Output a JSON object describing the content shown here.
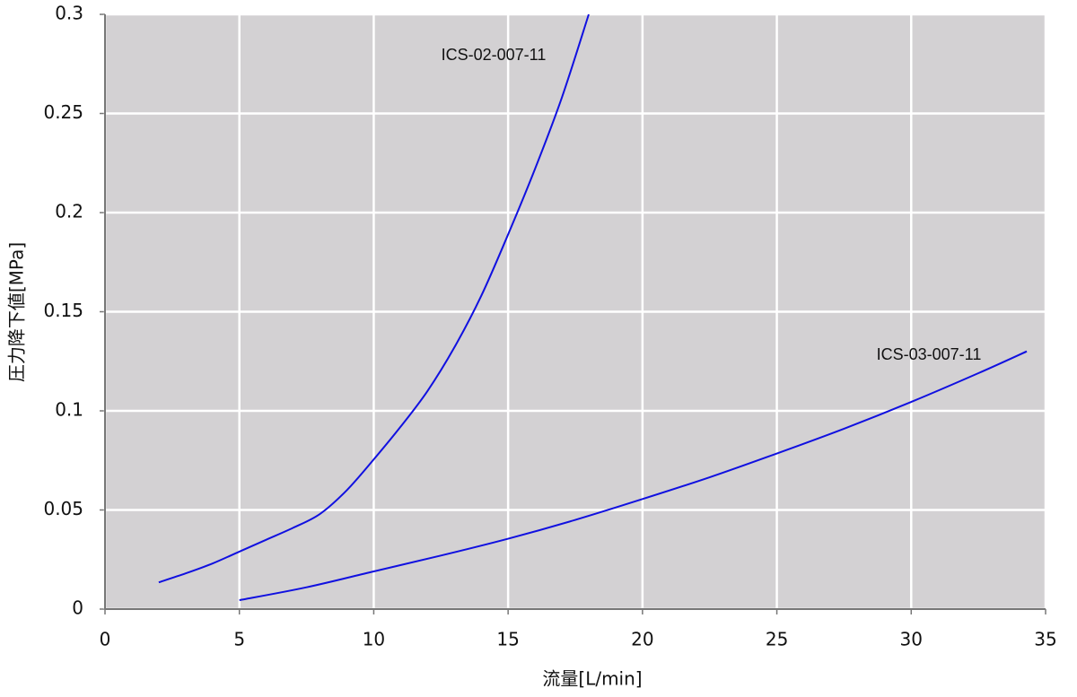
{
  "chart_data": {
    "type": "line",
    "x_label": "流量[L/min]",
    "y_label": "圧力降下値[MPa]",
    "xlim": [
      0,
      35
    ],
    "xticks": [
      0,
      5,
      10,
      15,
      20,
      25,
      30,
      35
    ],
    "ylim": [
      0,
      0.3
    ],
    "yticks": [
      0,
      0.05,
      0.1,
      0.15,
      0.2,
      0.25,
      0.3
    ],
    "grid": true,
    "series": [
      {
        "name": "ICS-02-007-11",
        "color": "#1010e0",
        "x": [
          2,
          3,
          4,
          5,
          6,
          7,
          8,
          9,
          10,
          11,
          12,
          13,
          14,
          15,
          16,
          17,
          18
        ],
        "values": [
          0.0135,
          0.018,
          0.023,
          0.029,
          0.035,
          0.041,
          0.048,
          0.06,
          0.0755,
          0.092,
          0.11,
          0.132,
          0.158,
          0.189,
          0.222,
          0.258,
          0.3
        ]
      },
      {
        "name": "ICS-03-007-11",
        "color": "#1010e0",
        "x": [
          5,
          7.5,
          10,
          12.5,
          15,
          17.5,
          20,
          22.5,
          25,
          27.5,
          30,
          32.5,
          34.3
        ],
        "values": [
          0.0045,
          0.011,
          0.019,
          0.027,
          0.0355,
          0.045,
          0.0555,
          0.0665,
          0.0785,
          0.091,
          0.1045,
          0.119,
          0.13
        ]
      }
    ]
  }
}
